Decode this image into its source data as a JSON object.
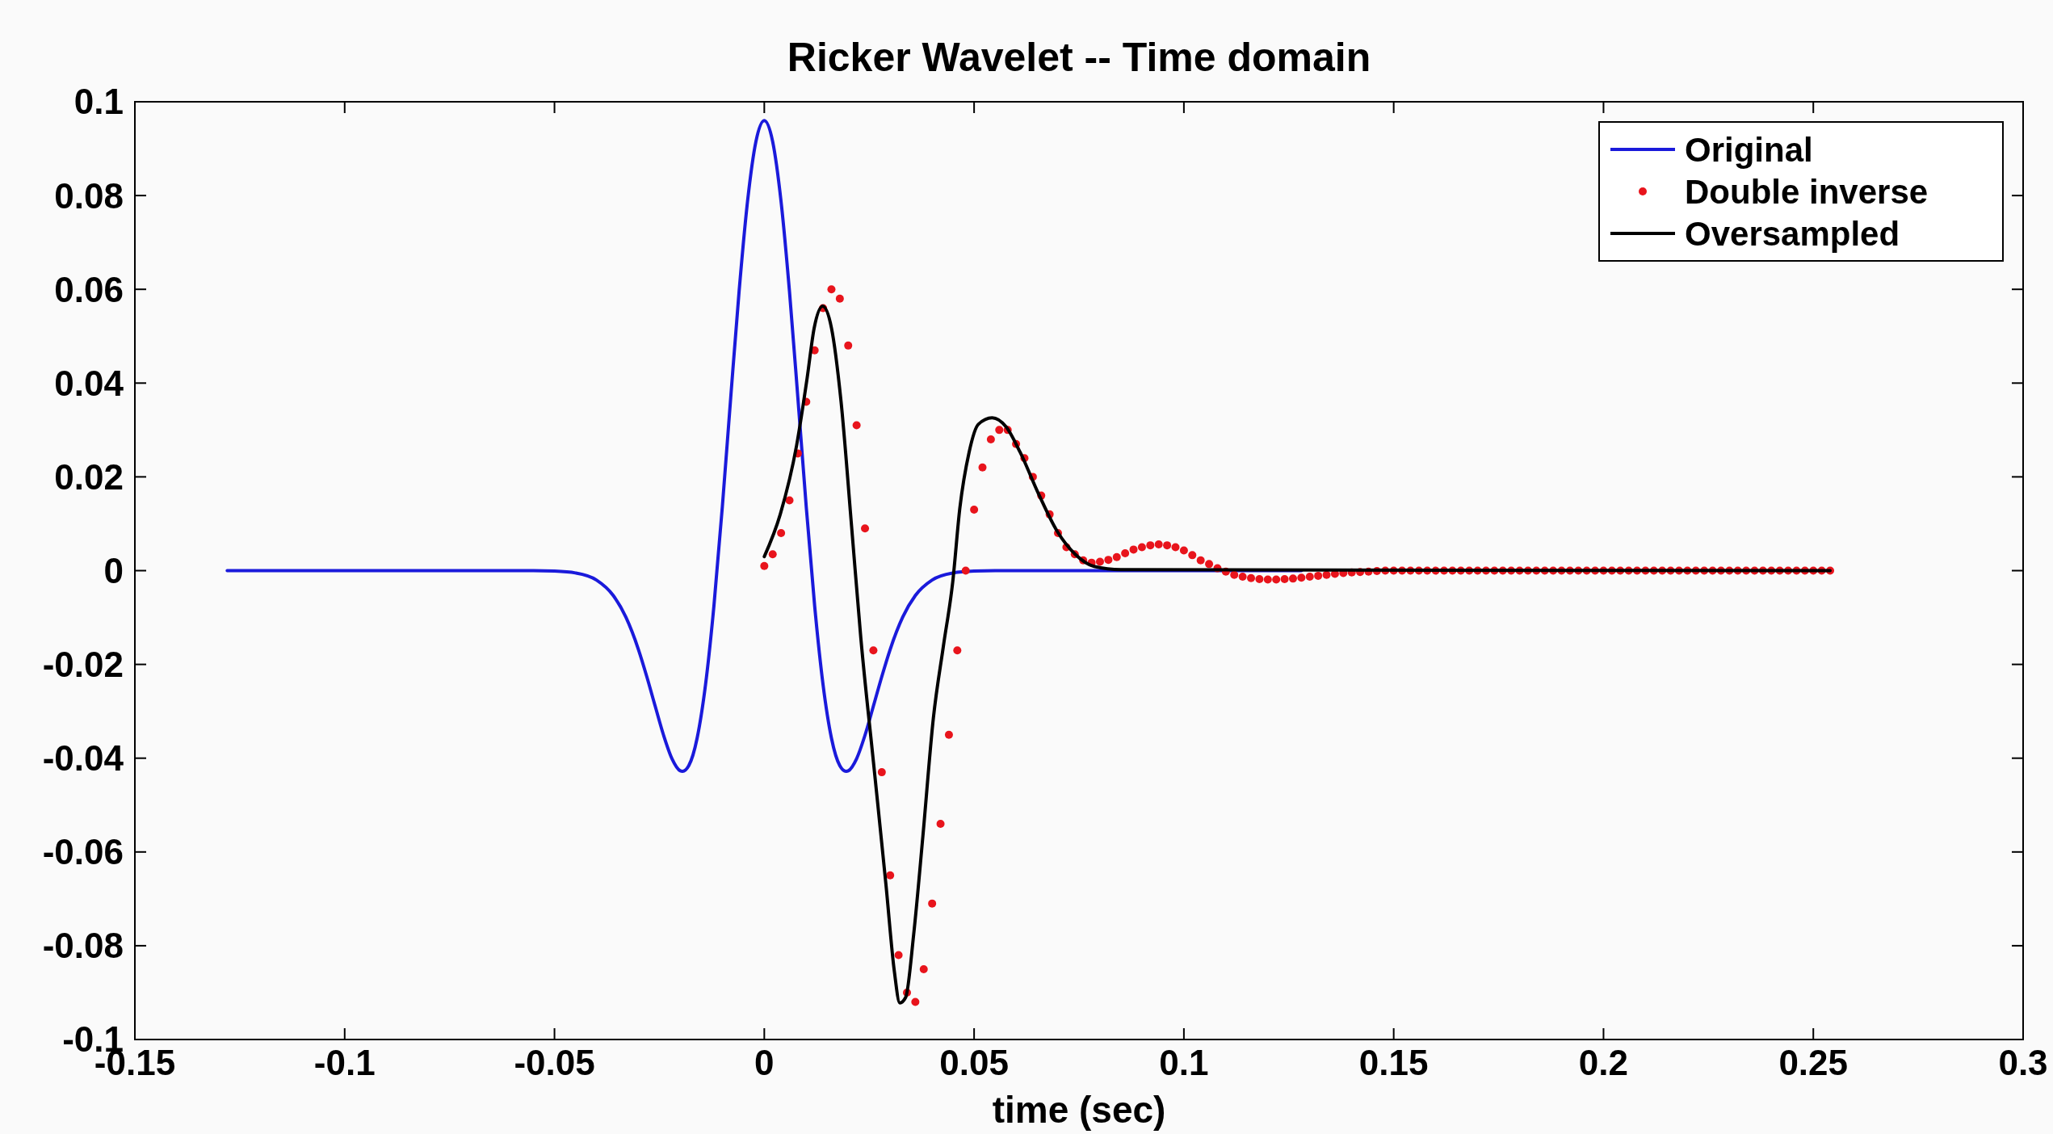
{
  "chart_data": {
    "type": "line",
    "title": "Ricker Wavelet -- Time domain",
    "xlabel": "time (sec)",
    "xlim": [
      -0.15,
      0.3
    ],
    "xticks": [
      -0.15,
      -0.1,
      -0.05,
      0,
      0.05,
      0.1,
      0.15,
      0.2,
      0.25,
      0.3
    ],
    "ylim": [
      -0.1,
      0.1
    ],
    "yticks": [
      -0.1,
      -0.08,
      -0.06,
      -0.04,
      -0.02,
      0,
      0.02,
      0.04,
      0.06,
      0.08,
      0.1
    ],
    "grid": false,
    "legend": "top right",
    "series": [
      {
        "name": "Original",
        "color": "#1a1adb",
        "marker": "none",
        "line_style": "solid",
        "x": [
          -0.128,
          -0.055,
          -0.05,
          -0.045,
          -0.04,
          -0.036,
          -0.033,
          -0.03,
          -0.028,
          -0.026,
          -0.024,
          -0.022,
          -0.02,
          -0.0195,
          -0.018,
          -0.016,
          -0.014,
          -0.012,
          -0.01,
          -0.008,
          -0.006,
          -0.004,
          -0.002,
          0,
          0.002,
          0.004,
          0.006,
          0.008,
          0.01,
          0.012,
          0.014,
          0.016,
          0.018,
          0.0195,
          0.02,
          0.022,
          0.024,
          0.026,
          0.028,
          0.03,
          0.033,
          0.036,
          0.04,
          0.045,
          0.05,
          0.055,
          0.128
        ],
        "values": [
          0,
          0,
          -0.0001,
          -0.0005,
          -0.002,
          -0.0053,
          -0.0099,
          -0.0168,
          -0.0226,
          -0.0289,
          -0.0351,
          -0.0401,
          -0.0427,
          -0.0428,
          -0.0416,
          -0.0357,
          -0.0243,
          -0.0075,
          0.0136,
          0.0369,
          0.0596,
          0.0787,
          0.0915,
          0.096,
          0.0915,
          0.0787,
          0.0596,
          0.0369,
          0.0136,
          -0.0075,
          -0.0243,
          -0.0357,
          -0.0416,
          -0.0428,
          -0.0427,
          -0.0401,
          -0.0351,
          -0.0289,
          -0.0226,
          -0.0168,
          -0.0099,
          -0.0053,
          -0.002,
          -0.0005,
          -0.0001,
          0,
          0
        ]
      },
      {
        "name": "Double inverse",
        "type": "scatter",
        "color": "#e8141c",
        "marker": "circle",
        "x": [
          0,
          0.002,
          0.004,
          0.006,
          0.008,
          0.01,
          0.012,
          0.014,
          0.016,
          0.018,
          0.02,
          0.022,
          0.024,
          0.026,
          0.028,
          0.03,
          0.032,
          0.034,
          0.036,
          0.038,
          0.04,
          0.042,
          0.044,
          0.046,
          0.048,
          0.05,
          0.052,
          0.054,
          0.056,
          0.058,
          0.06,
          0.062,
          0.064,
          0.066,
          0.068,
          0.07,
          0.072,
          0.074,
          0.076,
          0.078,
          0.08,
          0.082,
          0.084,
          0.086,
          0.088,
          0.09,
          0.092,
          0.094,
          0.096,
          0.098,
          0.1,
          0.102,
          0.104,
          0.106,
          0.108,
          0.11,
          0.112,
          0.114,
          0.116,
          0.118,
          0.12,
          0.122,
          0.124,
          0.126,
          0.128,
          0.13,
          0.132,
          0.134,
          0.136,
          0.138,
          0.14,
          0.142,
          0.144,
          0.146,
          0.148,
          0.15,
          0.152,
          0.154,
          0.156,
          0.158,
          0.16,
          0.162,
          0.164,
          0.166,
          0.168,
          0.17,
          0.172,
          0.174,
          0.176,
          0.178,
          0.18,
          0.182,
          0.184,
          0.186,
          0.188,
          0.19,
          0.192,
          0.194,
          0.196,
          0.198,
          0.2,
          0.202,
          0.204,
          0.206,
          0.208,
          0.21,
          0.212,
          0.214,
          0.216,
          0.218,
          0.22,
          0.222,
          0.224,
          0.226,
          0.228,
          0.23,
          0.232,
          0.234,
          0.236,
          0.238,
          0.24,
          0.242,
          0.244,
          0.246,
          0.248,
          0.25,
          0.252,
          0.254
        ],
        "values": [
          0.001,
          0.0035,
          0.008,
          0.015,
          0.025,
          0.036,
          0.047,
          0.056,
          0.06,
          0.058,
          0.048,
          0.031,
          0.009,
          -0.017,
          -0.043,
          -0.065,
          -0.082,
          -0.09,
          -0.092,
          -0.085,
          -0.071,
          -0.054,
          -0.035,
          -0.017,
          0,
          0.013,
          0.022,
          0.028,
          0.03,
          0.03,
          0.027,
          0.024,
          0.02,
          0.016,
          0.012,
          0.008,
          0.005,
          0.0035,
          0.0022,
          0.0017,
          0.0019,
          0.0023,
          0.0029,
          0.0037,
          0.0045,
          0.005,
          0.0054,
          0.0056,
          0.0054,
          0.005,
          0.0043,
          0.0033,
          0.0022,
          0.0014,
          0.0005,
          -0.0002,
          -0.0009,
          -0.0013,
          -0.0016,
          -0.0018,
          -0.0019,
          -0.0019,
          -0.0018,
          -0.0017,
          -0.0015,
          -0.0013,
          -0.0011,
          -0.0009,
          -0.0007,
          -0.0005,
          -0.0004,
          -0.0003,
          -0.0002,
          -0.0001,
          0,
          0,
          0,
          0,
          0,
          0,
          0,
          0,
          0,
          0,
          0,
          0,
          0,
          0,
          0,
          0,
          0,
          0,
          0,
          0,
          0,
          0,
          0,
          0,
          0,
          0,
          0,
          0,
          0,
          0,
          0,
          0,
          0,
          0,
          0,
          0,
          0,
          0,
          0,
          0,
          0,
          0,
          0,
          0,
          0,
          0,
          0,
          0,
          0,
          0,
          0,
          0,
          0,
          0
        ]
      },
      {
        "name": "Oversampled",
        "color": "#000000",
        "marker": "none",
        "line_style": "solid",
        "x": [
          0,
          0.0038,
          0.0077,
          0.0102,
          0.0119,
          0.0139,
          0.016,
          0.0183,
          0.0208,
          0.023,
          0.026,
          0.029,
          0.031,
          0.0323,
          0.0337,
          0.0356,
          0.0378,
          0.0403,
          0.0427,
          0.0449,
          0.0466,
          0.0488,
          0.051,
          0.0543,
          0.0576,
          0.061,
          0.0654,
          0.0698,
          0.0742,
          0.0786,
          0.085,
          0.254
        ],
        "values": [
          0.003,
          0.012,
          0.0267,
          0.041,
          0.0518,
          0.0564,
          0.0518,
          0.036,
          0.0095,
          -0.0143,
          -0.0407,
          -0.067,
          -0.0855,
          -0.0922,
          -0.091,
          -0.0776,
          -0.0566,
          -0.0314,
          -0.016,
          -0.0025,
          0.0133,
          0.0252,
          0.0312,
          0.0326,
          0.0307,
          0.0252,
          0.0163,
          0.0084,
          0.0034,
          0.0009,
          0.0002,
          0
        ]
      }
    ]
  }
}
